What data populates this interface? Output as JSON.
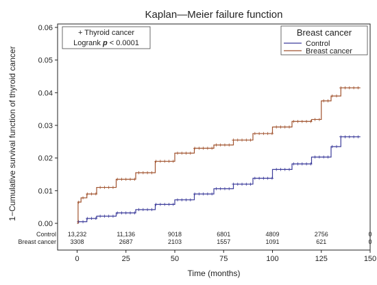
{
  "chart_data": {
    "type": "line",
    "title": "Kaplan—Meier failure function",
    "xlabel": "Time (months)",
    "ylabel": "1−Cumulative survival function of thyroid cancer",
    "xlim": [
      -10,
      150
    ],
    "ylim": [
      0,
      0.062
    ],
    "x_ticks": [
      "0",
      "25",
      "50",
      "75",
      "100",
      "125",
      "150"
    ],
    "y_ticks": [
      "0.00",
      "0.01",
      "0.02",
      "0.03",
      "0.04",
      "0.05",
      "0.06"
    ],
    "annotation": {
      "line1": "+ Thyroid cancer",
      "line2_prefix": "Logrank ",
      "line2_italic": "p",
      "line2_suffix": " < 0.0001"
    },
    "legend": {
      "title": "Breast cancer",
      "position": "top-right",
      "entries": [
        "Control",
        "Breast cancer"
      ]
    },
    "series": [
      {
        "name": "Control",
        "color": "#3b3b9a",
        "x": [
          0,
          5,
          10,
          20,
          30,
          40,
          50,
          60,
          70,
          80,
          90,
          100,
          110,
          120,
          130,
          135,
          145
        ],
        "y": [
          0.0005,
          0.0015,
          0.0022,
          0.0032,
          0.0042,
          0.0058,
          0.0072,
          0.009,
          0.0106,
          0.012,
          0.0138,
          0.0165,
          0.0182,
          0.0203,
          0.0235,
          0.0265,
          0.0265
        ]
      },
      {
        "name": "Breast cancer",
        "color": "#a0522d",
        "x": [
          0,
          0.5,
          2,
          5,
          10,
          20,
          30,
          40,
          50,
          60,
          70,
          80,
          90,
          100,
          110,
          120,
          125,
          130,
          135,
          145
        ],
        "y": [
          0.0,
          0.0065,
          0.0078,
          0.009,
          0.011,
          0.0135,
          0.0155,
          0.019,
          0.0215,
          0.023,
          0.024,
          0.0255,
          0.0275,
          0.0295,
          0.0312,
          0.0318,
          0.0375,
          0.039,
          0.0415,
          0.0415
        ]
      }
    ],
    "risk_table": {
      "times": [
        0,
        25,
        50,
        75,
        100,
        125,
        150
      ],
      "rows": [
        {
          "label": "Control",
          "values": [
            "13,232",
            "11,136",
            "9018",
            "6801",
            "4809",
            "2756",
            "0"
          ]
        },
        {
          "label": "Breast cancer",
          "values": [
            "3308",
            "2687",
            "2103",
            "1557",
            "1091",
            "621",
            "0"
          ]
        }
      ]
    }
  }
}
